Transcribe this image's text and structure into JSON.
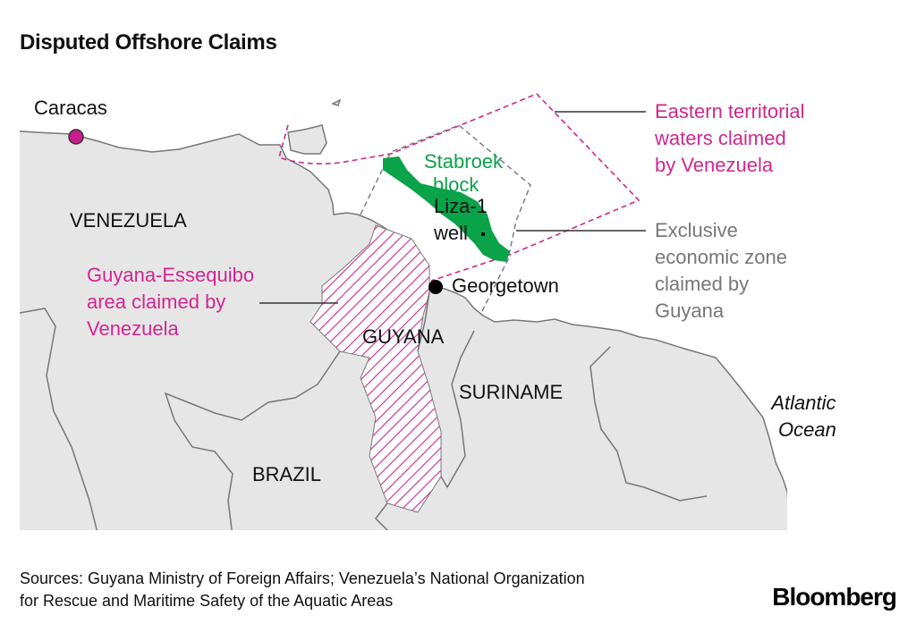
{
  "title": "Disputed Offshore Claims",
  "labels": {
    "caracas": "Caracas",
    "venezuela": "VENEZUELA",
    "guyana": "GUYANA",
    "suriname": "SURINAME",
    "brazil": "BRAZIL",
    "georgetown": "Georgetown",
    "atlantic": [
      "Atlantic",
      "Ocean"
    ],
    "stabroek": [
      "Stabroek",
      "block"
    ],
    "liza": [
      "Liza-1",
      "well"
    ]
  },
  "legend": {
    "eastern_waters": [
      "Eastern territorial",
      "waters claimed",
      "by Venezuela"
    ],
    "eez": [
      "Exclusive",
      "economic zone",
      "claimed by",
      "Guyana"
    ],
    "essequibo": [
      "Guyana-Essequibo",
      "area claimed by",
      "Venezuela"
    ]
  },
  "sources": [
    "Sources: Guyana Ministry of Foreign Affairs; Venezuela’s National Organization",
    "for Rescue and Maritime Safety of the Aquatic Areas"
  ],
  "logo": "Bloomberg",
  "colors": {
    "claim": "#d1268f",
    "eez": "#777777",
    "block": "#0aa34a",
    "land": "#e6e6e6",
    "border": "#777777"
  }
}
